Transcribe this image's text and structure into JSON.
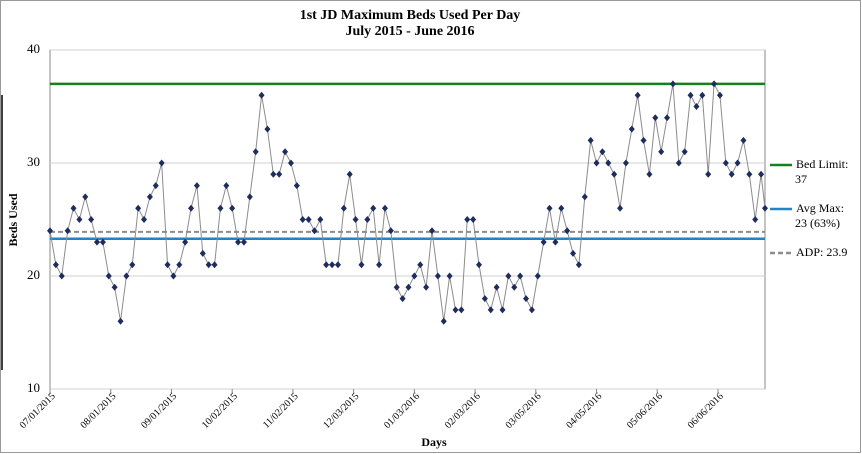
{
  "chart_data": {
    "type": "line",
    "title": "1st JD Maximum Beds Used Per Day",
    "subtitle": "July 2015 - June 2016",
    "x_label": "Days",
    "y_label": "Beds Used",
    "x": [
      "2015-07-01",
      "2015-07-04",
      "2015-07-07",
      "2015-07-10",
      "2015-07-13",
      "2015-07-16",
      "2015-07-19",
      "2015-07-22",
      "2015-07-25",
      "2015-07-28",
      "2015-07-31",
      "2015-08-03",
      "2015-08-06",
      "2015-08-09",
      "2015-08-12",
      "2015-08-15",
      "2015-08-18",
      "2015-08-21",
      "2015-08-24",
      "2015-08-27",
      "2015-08-30",
      "2015-09-02",
      "2015-09-05",
      "2015-09-08",
      "2015-09-11",
      "2015-09-14",
      "2015-09-17",
      "2015-09-20",
      "2015-09-23",
      "2015-09-26",
      "2015-09-29",
      "2015-10-02",
      "2015-10-05",
      "2015-10-08",
      "2015-10-11",
      "2015-10-14",
      "2015-10-17",
      "2015-10-20",
      "2015-10-23",
      "2015-10-26",
      "2015-10-29",
      "2015-11-01",
      "2015-11-04",
      "2015-11-07",
      "2015-11-10",
      "2015-11-13",
      "2015-11-16",
      "2015-11-19",
      "2015-11-22",
      "2015-11-25",
      "2015-11-28",
      "2015-12-01",
      "2015-12-04",
      "2015-12-07",
      "2015-12-10",
      "2015-12-13",
      "2015-12-16",
      "2015-12-19",
      "2015-12-22",
      "2015-12-25",
      "2015-12-28",
      "2015-12-31",
      "2016-01-03",
      "2016-01-06",
      "2016-01-09",
      "2016-01-12",
      "2016-01-15",
      "2016-01-18",
      "2016-01-21",
      "2016-01-24",
      "2016-01-27",
      "2016-01-30",
      "2016-02-02",
      "2016-02-05",
      "2016-02-08",
      "2016-02-11",
      "2016-02-14",
      "2016-02-17",
      "2016-02-20",
      "2016-02-23",
      "2016-02-26",
      "2016-02-29",
      "2016-03-03",
      "2016-03-06",
      "2016-03-09",
      "2016-03-12",
      "2016-03-15",
      "2016-03-18",
      "2016-03-21",
      "2016-03-24",
      "2016-03-27",
      "2016-03-30",
      "2016-04-02",
      "2016-04-05",
      "2016-04-08",
      "2016-04-11",
      "2016-04-14",
      "2016-04-17",
      "2016-04-20",
      "2016-04-23",
      "2016-04-26",
      "2016-04-29",
      "2016-05-02",
      "2016-05-05",
      "2016-05-08",
      "2016-05-11",
      "2016-05-14",
      "2016-05-17",
      "2016-05-20",
      "2016-05-23",
      "2016-05-26",
      "2016-05-29",
      "2016-06-01",
      "2016-06-04",
      "2016-06-07",
      "2016-06-10",
      "2016-06-13",
      "2016-06-16",
      "2016-06-19",
      "2016-06-22",
      "2016-06-25",
      "2016-06-28",
      "2016-06-30"
    ],
    "series": [
      {
        "color": "#1f2d5e",
        "line_color": "#8c8c8c",
        "values": [
          24,
          21,
          20,
          24,
          26,
          25,
          27,
          25,
          23,
          23,
          20,
          19,
          16,
          20,
          21,
          26,
          25,
          27,
          28,
          30,
          21,
          20,
          21,
          23,
          26,
          28,
          22,
          21,
          21,
          26,
          28,
          26,
          23,
          23,
          27,
          31,
          36,
          33,
          29,
          29,
          31,
          30,
          28,
          25,
          25,
          24,
          25,
          21,
          21,
          21,
          26,
          29,
          25,
          21,
          25,
          26,
          21,
          26,
          24,
          19,
          18,
          19,
          20,
          21,
          19,
          24,
          20,
          16,
          20,
          17,
          17,
          25,
          25,
          21,
          18,
          17,
          19,
          17,
          20,
          19,
          20,
          18,
          17,
          20,
          23,
          26,
          23,
          26,
          24,
          22,
          21,
          27,
          32,
          30,
          31,
          30,
          29,
          26,
          30,
          33,
          36,
          32,
          29,
          34,
          31,
          34,
          37,
          30,
          31,
          36,
          35,
          36,
          29,
          37,
          36,
          30,
          29,
          30,
          32,
          29,
          25,
          29,
          26
        ]
      }
    ],
    "reference_lines": [
      {
        "name": "Bed Limit: 37",
        "value": 37,
        "color": "#13821a",
        "dashed": false
      },
      {
        "name": "Avg Max: 23 (63%)",
        "value": 23.3,
        "color": "#2383c4",
        "dashed": false
      },
      {
        "name": "ADP: 23.9",
        "value": 23.9,
        "color": "#8c8c8c",
        "dashed": true
      }
    ],
    "xlim": [
      "2015-07-01",
      "2016-06-30"
    ],
    "xticks": [
      {
        "value": "2015-07-01",
        "label": "07/01/2015"
      },
      {
        "value": "2015-08-01",
        "label": "08/01/2015"
      },
      {
        "value": "2015-09-01",
        "label": "09/01/2015"
      },
      {
        "value": "2015-10-02",
        "label": "10/02/2015"
      },
      {
        "value": "2015-11-02",
        "label": "11/02/2015"
      },
      {
        "value": "2015-12-03",
        "label": "12/03/2015"
      },
      {
        "value": "2016-01-03",
        "label": "01/03/2016"
      },
      {
        "value": "2016-02-03",
        "label": "02/03/2016"
      },
      {
        "value": "2016-03-05",
        "label": "03/05/2016"
      },
      {
        "value": "2016-04-05",
        "label": "04/05/2016"
      },
      {
        "value": "2016-05-06",
        "label": "05/06/2016"
      },
      {
        "value": "2016-06-06",
        "label": "06/06/2016"
      }
    ],
    "ylim": [
      10,
      40
    ],
    "yticks": [
      10,
      20,
      30,
      40
    ],
    "grid": true
  }
}
